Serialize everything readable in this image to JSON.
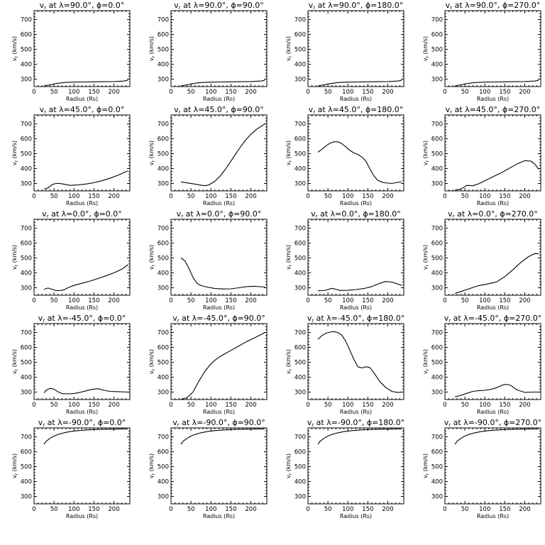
{
  "figure": {
    "xlabel": "Radius (Rs)",
    "ylabel": "v",
    "ylabel_sub": "r",
    "ylabel_unit": " (km/s)",
    "xticks": [
      "0",
      "50",
      "100",
      "150",
      "200"
    ],
    "yticks": [
      "300",
      "400",
      "500",
      "600",
      "700"
    ],
    "title_prefix": "v",
    "title_sub": "r",
    "title_at": " at λ=",
    "title_phi": ", ϕ=",
    "degree": "°"
  },
  "chart_data": [
    {
      "type": "line",
      "lambda": "90.0",
      "phi": "0.0",
      "xlim": [
        0,
        240
      ],
      "ylim": [
        250,
        760
      ],
      "x": [
        25,
        40,
        55,
        75,
        100,
        125,
        150,
        175,
        200,
        225,
        235
      ],
      "y": [
        255,
        262,
        270,
        277,
        280,
        281,
        282,
        283,
        284,
        287,
        292
      ]
    },
    {
      "type": "line",
      "lambda": "90.0",
      "phi": "90.0",
      "xlim": [
        0,
        240
      ],
      "ylim": [
        250,
        760
      ],
      "x": [
        25,
        40,
        55,
        75,
        100,
        125,
        150,
        175,
        200,
        225,
        235
      ],
      "y": [
        255,
        262,
        270,
        277,
        280,
        281,
        282,
        283,
        284,
        287,
        292
      ]
    },
    {
      "type": "line",
      "lambda": "90.0",
      "phi": "180.0",
      "xlim": [
        0,
        240
      ],
      "ylim": [
        250,
        760
      ],
      "x": [
        25,
        40,
        55,
        75,
        100,
        125,
        150,
        175,
        200,
        225,
        235
      ],
      "y": [
        255,
        262,
        270,
        277,
        280,
        281,
        282,
        283,
        284,
        287,
        292
      ]
    },
    {
      "type": "line",
      "lambda": "90.0",
      "phi": "270.0",
      "xlim": [
        0,
        240
      ],
      "ylim": [
        250,
        760
      ],
      "x": [
        25,
        40,
        55,
        75,
        100,
        125,
        150,
        175,
        200,
        225,
        235
      ],
      "y": [
        255,
        262,
        270,
        277,
        280,
        281,
        282,
        283,
        284,
        287,
        292
      ]
    },
    {
      "type": "line",
      "lambda": "45.0",
      "phi": "0.0",
      "xlim": [
        0,
        240
      ],
      "ylim": [
        250,
        760
      ],
      "x": [
        25,
        35,
        45,
        55,
        65,
        75,
        90,
        110,
        130,
        150,
        170,
        190,
        210,
        235
      ],
      "y": [
        262,
        270,
        292,
        300,
        300,
        295,
        287,
        290,
        296,
        305,
        318,
        335,
        355,
        385
      ]
    },
    {
      "type": "line",
      "lambda": "45.0",
      "phi": "90.0",
      "xlim": [
        0,
        240
      ],
      "ylim": [
        250,
        760
      ],
      "x": [
        25,
        40,
        55,
        70,
        85,
        95,
        110,
        125,
        140,
        155,
        170,
        185,
        200,
        215,
        235
      ],
      "y": [
        310,
        304,
        298,
        290,
        285,
        290,
        315,
        355,
        410,
        470,
        530,
        585,
        630,
        665,
        700
      ]
    },
    {
      "type": "line",
      "lambda": "45.0",
      "phi": "180.0",
      "xlim": [
        0,
        240
      ],
      "ylim": [
        250,
        760
      ],
      "x": [
        25,
        35,
        45,
        55,
        65,
        75,
        85,
        95,
        105,
        115,
        125,
        135,
        145,
        155,
        165,
        175,
        190,
        210,
        235
      ],
      "y": [
        510,
        530,
        552,
        570,
        580,
        580,
        567,
        545,
        522,
        505,
        495,
        478,
        450,
        398,
        352,
        320,
        305,
        300,
        312
      ]
    },
    {
      "type": "line",
      "lambda": "45.0",
      "phi": "270.0",
      "xlim": [
        0,
        240
      ],
      "ylim": [
        250,
        760
      ],
      "x": [
        25,
        40,
        55,
        70,
        85,
        100,
        120,
        140,
        160,
        180,
        200,
        215,
        225,
        235
      ],
      "y": [
        255,
        263,
        287,
        285,
        298,
        318,
        345,
        370,
        400,
        430,
        453,
        450,
        430,
        395
      ]
    },
    {
      "type": "line",
      "lambda": "0.0",
      "phi": "0.0",
      "xlim": [
        0,
        240
      ],
      "ylim": [
        250,
        760
      ],
      "x": [
        25,
        35,
        45,
        55,
        65,
        75,
        85,
        95,
        105,
        120,
        140,
        160,
        180,
        200,
        220,
        235
      ],
      "y": [
        290,
        298,
        290,
        281,
        281,
        286,
        300,
        311,
        320,
        330,
        345,
        362,
        380,
        400,
        425,
        455
      ]
    },
    {
      "type": "line",
      "lambda": "0.0",
      "phi": "90.0",
      "xlim": [
        0,
        240
      ],
      "ylim": [
        250,
        760
      ],
      "x": [
        25,
        35,
        45,
        55,
        65,
        75,
        90,
        110,
        130,
        150,
        170,
        190,
        210,
        235
      ],
      "y": [
        500,
        480,
        430,
        370,
        330,
        315,
        305,
        295,
        292,
        293,
        300,
        308,
        310,
        305
      ]
    },
    {
      "type": "line",
      "lambda": "0.0",
      "phi": "180.0",
      "xlim": [
        0,
        240
      ],
      "ylim": [
        250,
        760
      ],
      "x": [
        25,
        40,
        50,
        60,
        70,
        80,
        100,
        120,
        140,
        160,
        180,
        195,
        210,
        225,
        235
      ],
      "y": [
        280,
        281,
        288,
        296,
        290,
        282,
        283,
        288,
        295,
        308,
        330,
        342,
        338,
        325,
        315
      ]
    },
    {
      "type": "line",
      "lambda": "0.0",
      "phi": "270.0",
      "xlim": [
        0,
        240
      ],
      "ylim": [
        250,
        760
      ],
      "x": [
        25,
        40,
        55,
        70,
        85,
        100,
        115,
        130,
        150,
        170,
        190,
        210,
        225,
        235
      ],
      "y": [
        262,
        275,
        288,
        302,
        315,
        322,
        330,
        340,
        375,
        420,
        470,
        510,
        530,
        528
      ]
    },
    {
      "type": "line",
      "lambda": "-45.0",
      "phi": "0.0",
      "xlim": [
        0,
        240
      ],
      "ylim": [
        250,
        760
      ],
      "x": [
        25,
        30,
        40,
        50,
        60,
        70,
        85,
        100,
        115,
        130,
        145,
        160,
        175,
        190,
        210,
        235
      ],
      "y": [
        295,
        312,
        325,
        320,
        302,
        290,
        288,
        290,
        298,
        308,
        318,
        323,
        312,
        305,
        303,
        300
      ]
    },
    {
      "type": "line",
      "lambda": "-45.0",
      "phi": "90.0",
      "xlim": [
        0,
        240
      ],
      "ylim": [
        250,
        760
      ],
      "x": [
        25,
        40,
        55,
        70,
        85,
        100,
        115,
        130,
        150,
        170,
        190,
        210,
        235
      ],
      "y": [
        252,
        262,
        300,
        375,
        440,
        490,
        525,
        550,
        580,
        610,
        640,
        665,
        700
      ]
    },
    {
      "type": "line",
      "lambda": "-45.0",
      "phi": "180.0",
      "xlim": [
        0,
        240
      ],
      "ylim": [
        250,
        760
      ],
      "x": [
        25,
        35,
        45,
        55,
        65,
        75,
        85,
        95,
        105,
        115,
        125,
        135,
        145,
        155,
        165,
        180,
        195,
        210,
        225,
        235
      ],
      "y": [
        655,
        680,
        695,
        703,
        706,
        700,
        682,
        640,
        580,
        520,
        470,
        462,
        470,
        465,
        430,
        370,
        330,
        305,
        297,
        300
      ]
    },
    {
      "type": "line",
      "lambda": "-45.0",
      "phi": "270.0",
      "xlim": [
        0,
        240
      ],
      "ylim": [
        250,
        760
      ],
      "x": [
        25,
        40,
        55,
        70,
        85,
        100,
        115,
        130,
        145,
        155,
        165,
        180,
        200,
        220,
        235
      ],
      "y": [
        268,
        278,
        292,
        305,
        310,
        312,
        318,
        330,
        348,
        352,
        345,
        315,
        298,
        300,
        300
      ]
    },
    {
      "type": "line",
      "lambda": "-90.0",
      "phi": "0.0",
      "xlim": [
        0,
        240
      ],
      "ylim": [
        250,
        760
      ],
      "x": [
        25,
        30,
        40,
        50,
        60,
        75,
        90,
        110,
        130,
        150,
        175,
        200,
        225,
        235
      ],
      "y": [
        650,
        670,
        690,
        705,
        716,
        727,
        735,
        742,
        746,
        749,
        751,
        752,
        753,
        753
      ]
    },
    {
      "type": "line",
      "lambda": "-90.0",
      "phi": "90.0",
      "xlim": [
        0,
        240
      ],
      "ylim": [
        250,
        760
      ],
      "x": [
        25,
        30,
        40,
        50,
        60,
        75,
        90,
        110,
        130,
        150,
        175,
        200,
        225,
        235
      ],
      "y": [
        650,
        670,
        690,
        705,
        716,
        727,
        735,
        742,
        746,
        749,
        751,
        752,
        753,
        753
      ]
    },
    {
      "type": "line",
      "lambda": "-90.0",
      "phi": "180.0",
      "xlim": [
        0,
        240
      ],
      "ylim": [
        250,
        760
      ],
      "x": [
        25,
        30,
        40,
        50,
        60,
        75,
        90,
        110,
        130,
        150,
        175,
        200,
        225,
        235
      ],
      "y": [
        650,
        670,
        690,
        705,
        716,
        727,
        735,
        742,
        746,
        749,
        751,
        752,
        753,
        753
      ]
    },
    {
      "type": "line",
      "lambda": "-90.0",
      "phi": "270.0",
      "xlim": [
        0,
        240
      ],
      "ylim": [
        250,
        760
      ],
      "x": [
        25,
        30,
        40,
        50,
        60,
        75,
        90,
        110,
        130,
        150,
        175,
        200,
        225,
        235
      ],
      "y": [
        650,
        670,
        690,
        705,
        716,
        727,
        735,
        742,
        746,
        749,
        751,
        752,
        753,
        753
      ]
    }
  ]
}
